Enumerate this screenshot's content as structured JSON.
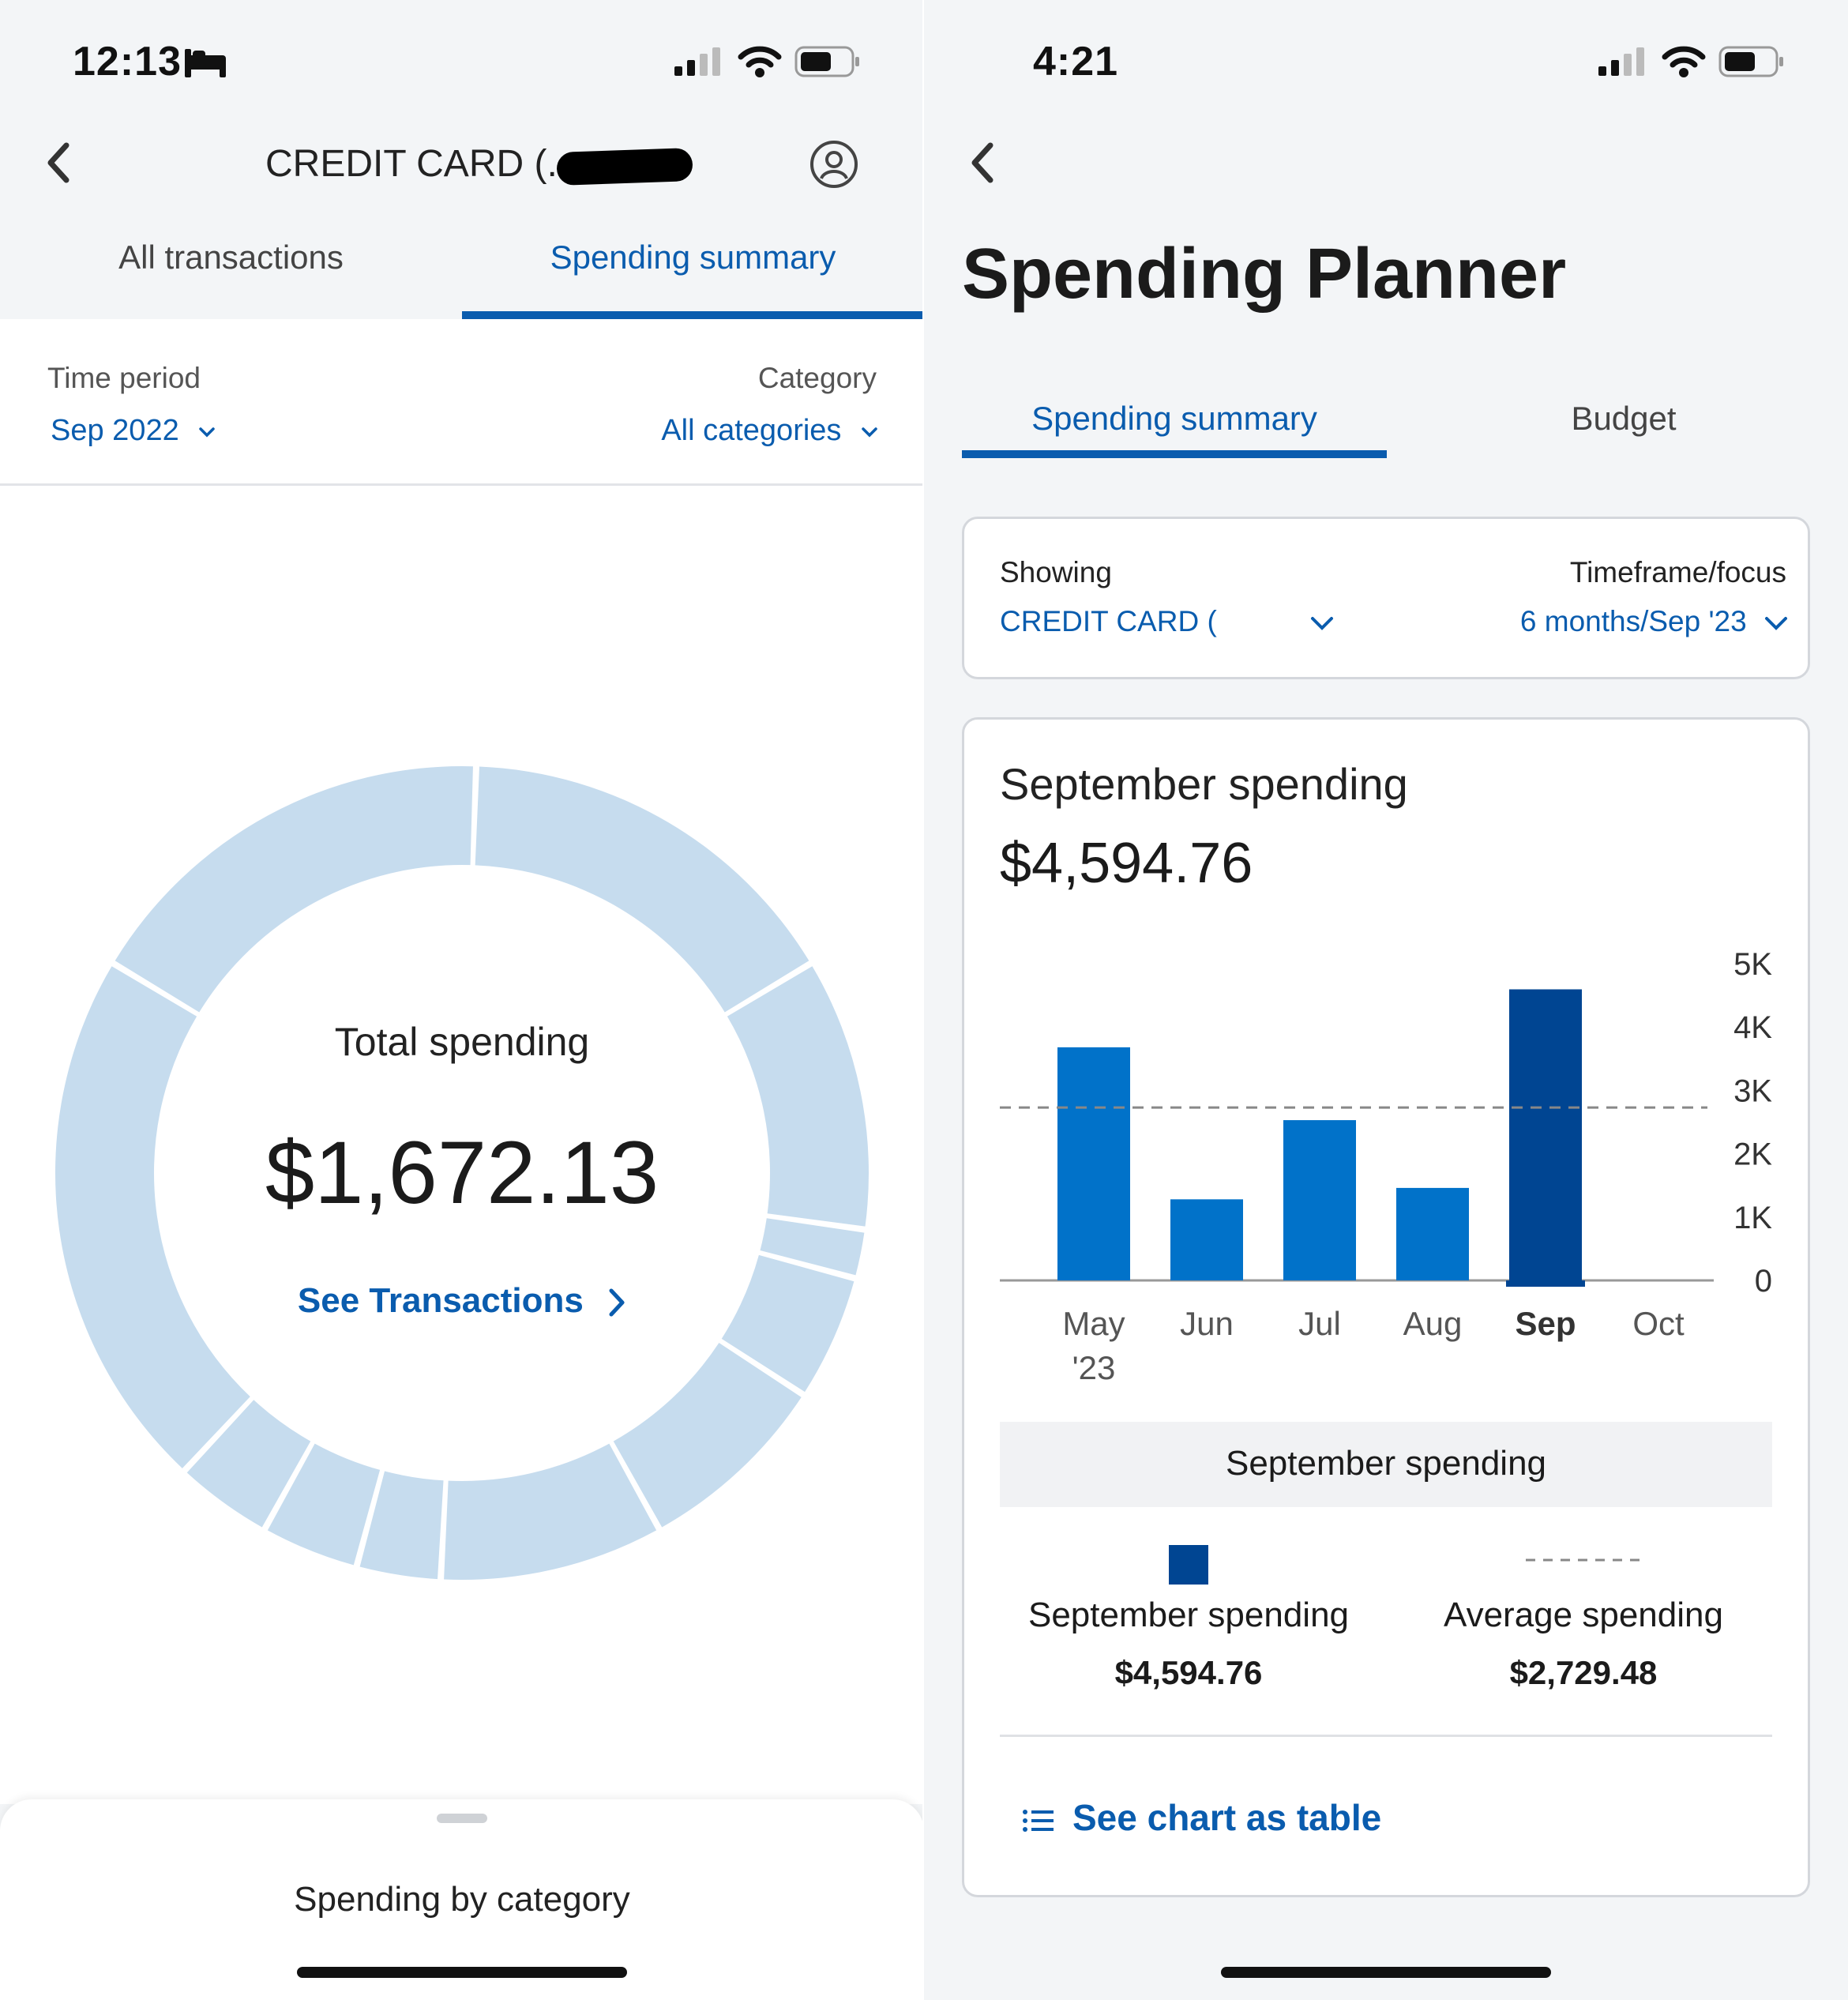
{
  "left": {
    "status_time": "12:13",
    "header_title": "CREDIT CARD (...",
    "tabs": [
      {
        "label": "All transactions",
        "active": false
      },
      {
        "label": "Spending summary",
        "active": true
      }
    ],
    "time_period": {
      "label": "Time period",
      "value": "Sep 2022"
    },
    "category": {
      "label": "Category",
      "value": "All categories"
    },
    "donut": {
      "total_label": "Total spending",
      "total_value": "$1,672.13",
      "link_label": "See Transactions"
    },
    "sheet_title": "Spending by category"
  },
  "right": {
    "status_time": "4:21",
    "page_title": "Spending Planner",
    "tabs": [
      {
        "label": "Spending summary",
        "active": true
      },
      {
        "label": "Budget",
        "active": false
      }
    ],
    "filters": {
      "showing_label": "Showing",
      "showing_value": "CREDIT CARD (",
      "timeframe_label": "Timeframe/focus",
      "timeframe_value": "6 months/Sep '23"
    },
    "card": {
      "title": "September spending",
      "amount": "$4,594.76",
      "band_label": "September spending",
      "legend": [
        {
          "label": "September spending",
          "value": "$4,594.76"
        },
        {
          "label": "Average spending",
          "value": "$2,729.48"
        }
      ],
      "table_link": "See chart as table"
    }
  },
  "colors": {
    "accent": "#0a5cae",
    "bar": "#0172c9",
    "bar_selected": "#004592",
    "donut": "#c6dcee",
    "background": "#f3f5f7"
  },
  "chart_data": {
    "type": "bar",
    "categories": [
      "May '23",
      "Jun",
      "Jul",
      "Aug",
      "Sep",
      "Oct"
    ],
    "values": [
      3680,
      1280,
      2530,
      1460,
      4594.76,
      null
    ],
    "selected": "Sep",
    "average": 2729.48,
    "ylim": [
      0,
      5000
    ],
    "yticks": [
      "0",
      "1K",
      "2K",
      "3K",
      "4K",
      "5K"
    ],
    "xlabels": [
      [
        "May",
        "'23"
      ],
      [
        "Jun"
      ],
      [
        "Jul"
      ],
      [
        "Aug"
      ],
      [
        "Sep"
      ],
      [
        "Oct"
      ]
    ]
  }
}
